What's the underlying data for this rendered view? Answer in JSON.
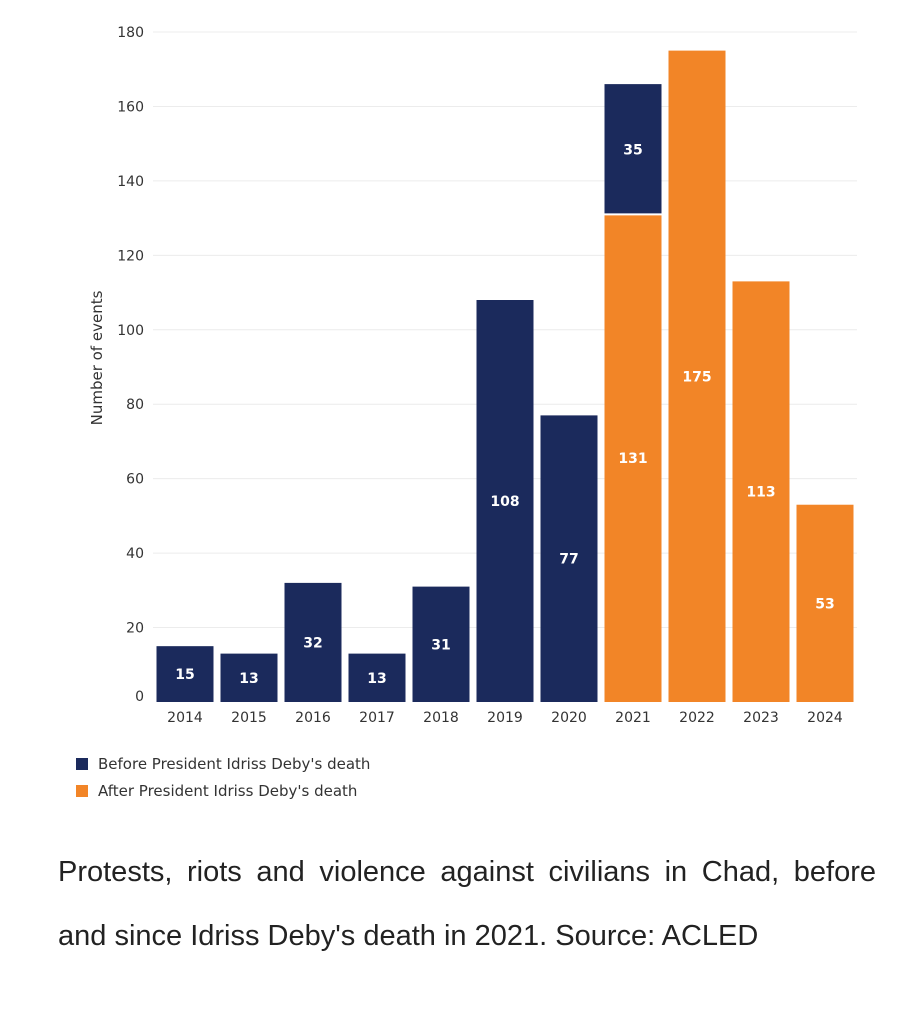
{
  "chart_data": {
    "type": "bar",
    "stacked": true,
    "categories": [
      "2014",
      "2015",
      "2016",
      "2017",
      "2018",
      "2019",
      "2020",
      "2021",
      "2022",
      "2023",
      "2024"
    ],
    "series": [
      {
        "name": "Before President Idriss Deby's death",
        "color": "#1b2a5c",
        "values": [
          15,
          13,
          32,
          13,
          31,
          108,
          77,
          35,
          0,
          0,
          0
        ]
      },
      {
        "name": "After President Idriss Deby's death",
        "color": "#f28527",
        "values": [
          0,
          0,
          0,
          0,
          0,
          0,
          0,
          131,
          175,
          113,
          53
        ]
      }
    ],
    "stack_order": [
      "After President Idriss Deby's death",
      "Before President Idriss Deby's death"
    ],
    "ylabel": "Number of events",
    "xlabel": "",
    "ylim": [
      0,
      180
    ],
    "yticks": [
      0,
      20,
      40,
      60,
      80,
      100,
      120,
      140,
      160,
      180
    ],
    "grid": true,
    "legend": "bottom-left"
  },
  "caption": "Protests, riots and violence against civilians in Chad, before and since Idriss Deby's death in 2021. Source: ACLED"
}
